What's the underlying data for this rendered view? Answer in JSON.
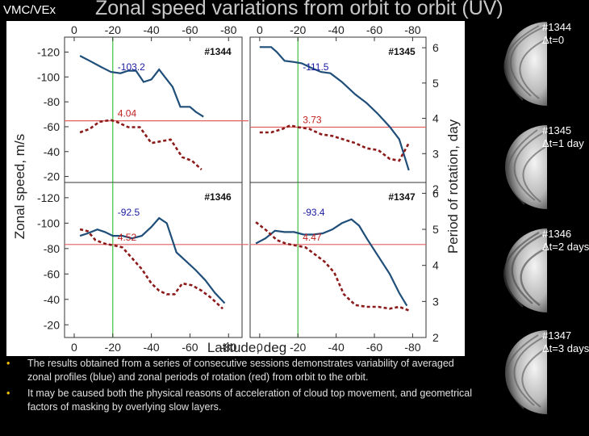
{
  "corner_label": "VMC/VEx",
  "title": "Zonal speed variations from orbit to orbit (UV)",
  "colors": {
    "speed": "#1f4e79",
    "period": "#8b1a1a",
    "threshold": "#e06060",
    "marker": "#40c040"
  },
  "chart_data": {
    "type": "line",
    "xlabel": "Latitude, deg",
    "ylabel_left": "Zonal speed, m/s",
    "ylabel_right": "Period of rotation, day",
    "x_ticks": [
      0,
      -20,
      -40,
      -60,
      -80
    ],
    "y_ticks_left": [
      -120,
      -100,
      -80,
      -60,
      -40,
      -20
    ],
    "y_ticks_right": [
      2,
      3,
      4,
      5,
      6
    ],
    "xlim": [
      5,
      -87
    ],
    "ylim_left": [
      -10,
      -132
    ],
    "ylim_right": [
      2,
      6.3
    ],
    "marker_latitude": -20,
    "panels": [
      {
        "orbit": "#1344",
        "mean_speed": "-103.2",
        "mean_period": "4.04",
        "threshold_day": 3.93,
        "speed": {
          "lat": [
            -3,
            -8,
            -14,
            -19,
            -24,
            -28,
            -32,
            -36,
            -40,
            -44,
            -47,
            -51,
            -55,
            -60,
            -63,
            -67
          ],
          "val": [
            -117,
            -113,
            -108,
            -104,
            -103,
            -105,
            -105,
            -96,
            -98,
            -106,
            -100,
            -92,
            -76,
            -76,
            -72,
            -68
          ]
        },
        "period": {
          "lat": [
            -3,
            -8,
            -13,
            -19,
            -22,
            -28,
            -34,
            -40,
            -45,
            -50,
            -56,
            -61,
            -66
          ],
          "val": [
            3.6,
            3.7,
            3.9,
            3.95,
            3.9,
            3.75,
            3.75,
            3.3,
            3.35,
            3.4,
            2.9,
            2.8,
            2.55
          ]
        }
      },
      {
        "orbit": "#1345",
        "mean_speed": "-111.5",
        "mean_period": "3.73",
        "threshold_day": 3.75,
        "speed": {
          "lat": [
            0,
            -6,
            -9,
            -13,
            -18,
            -22,
            -26,
            -32,
            -37,
            -43,
            -50,
            -56,
            -62,
            -68,
            -73,
            -78
          ],
          "val": [
            -124,
            -124,
            -120,
            -113,
            -112,
            -111,
            -108,
            -104,
            -103,
            -96,
            -86,
            -79,
            -70,
            -60,
            -50,
            -25
          ]
        },
        "period": {
          "lat": [
            0,
            -6,
            -12,
            -16,
            -20,
            -26,
            -32,
            -38,
            -44,
            -50,
            -56,
            -62,
            -68,
            -73,
            -78
          ],
          "val": [
            3.6,
            3.6,
            3.7,
            3.8,
            3.75,
            3.7,
            3.55,
            3.5,
            3.4,
            3.3,
            3.15,
            3.1,
            2.85,
            2.8,
            3.3
          ]
        }
      },
      {
        "orbit": "#1346",
        "mean_speed": "-92.5",
        "mean_period": "4.52",
        "threshold_day": 4.58,
        "speed": {
          "lat": [
            -3,
            -7,
            -12,
            -16,
            -20,
            -25,
            -30,
            -35,
            -40,
            -44,
            -48,
            -53,
            -58,
            -63,
            -68,
            -73,
            -78
          ],
          "val": [
            -90,
            -92,
            -95,
            -93,
            -90,
            -90,
            -88,
            -90,
            -97,
            -104,
            -100,
            -77,
            -70,
            -63,
            -55,
            -45,
            -37
          ]
        },
        "period": {
          "lat": [
            -3,
            -7,
            -11,
            -16,
            -21,
            -25,
            -30,
            -35,
            -40,
            -44,
            -48,
            -52,
            -56,
            -61,
            -66,
            -71,
            -77
          ],
          "val": [
            5.0,
            4.95,
            4.7,
            4.6,
            4.55,
            4.5,
            4.2,
            3.9,
            3.5,
            3.3,
            3.2,
            3.2,
            3.5,
            3.45,
            3.3,
            3.1,
            2.8
          ]
        }
      },
      {
        "orbit": "#1347",
        "mean_speed": "-93.4",
        "mean_period": "4.47",
        "threshold_day": 4.58,
        "speed": {
          "lat": [
            2,
            -3,
            -8,
            -13,
            -18,
            -23,
            -28,
            -33,
            -38,
            -43,
            -48,
            -52,
            -56,
            -62,
            -68,
            -73,
            -77
          ],
          "val": [
            -84,
            -88,
            -94,
            -93,
            -93,
            -91,
            -91,
            -92,
            -95,
            -100,
            -103,
            -98,
            -88,
            -74,
            -60,
            -45,
            -35
          ]
        },
        "period": {
          "lat": [
            2,
            -4,
            -9,
            -14,
            -19,
            -24,
            -29,
            -34,
            -39,
            -44,
            -50,
            -56,
            -62,
            -68,
            -73,
            -78
          ],
          "val": [
            5.2,
            4.95,
            4.7,
            4.6,
            4.55,
            4.5,
            4.3,
            4.1,
            3.8,
            3.2,
            2.9,
            2.85,
            2.85,
            2.8,
            2.85,
            2.75
          ]
        }
      }
    ]
  },
  "bullets": [
    "The results obtained from a series of consecutive sessions demonstrates variability of averaged zonal profiles (blue) and zonal periods of rotation (red) from orbit to the orbit.",
    "It may be caused both the physical reasons of acceleration of cloud top movement, and geometrical factors of masking by overlying slow layers."
  ],
  "images": [
    {
      "orbit": "#1344",
      "dt": "Δt=0"
    },
    {
      "orbit": "#1345",
      "dt": "Δt=1 day"
    },
    {
      "orbit": "#1346",
      "dt": "Δt=2 days"
    },
    {
      "orbit": "#1347",
      "dt": "Δt=3 days"
    }
  ]
}
